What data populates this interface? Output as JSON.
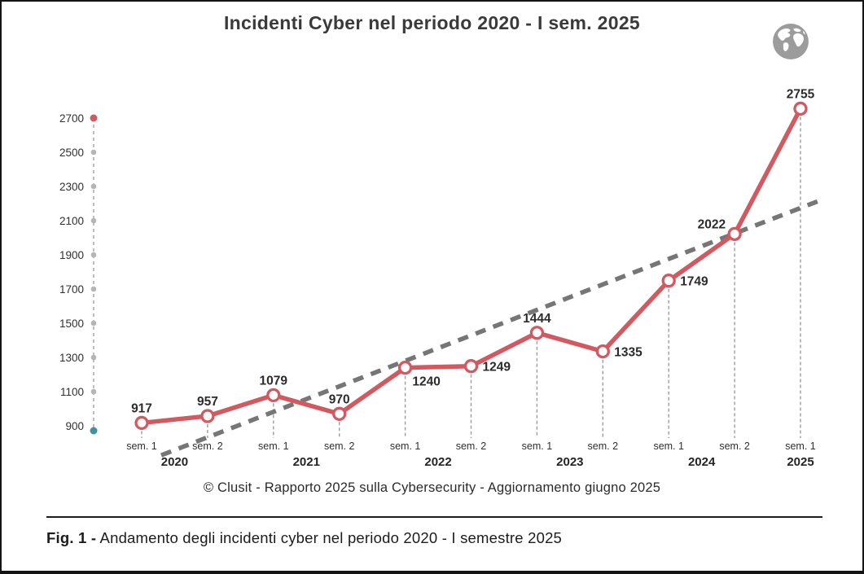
{
  "header": {
    "title": "Incidenti Cyber nel periodo 2020 - I sem. 2025",
    "globe_icon": "globe-icon"
  },
  "chart_data": {
    "type": "line",
    "title": "Incidenti Cyber nel periodo 2020 - I sem. 2025",
    "series": [
      {
        "name": "incidenti-per-semestre",
        "values": [
          917,
          957,
          1079,
          970,
          1240,
          1249,
          1444,
          1335,
          1749,
          2022,
          2755
        ],
        "color": "#d2595f",
        "marker": "open-circle"
      }
    ],
    "categories_sem": [
      "sem. 1",
      "sem. 2",
      "sem. 1",
      "sem. 2",
      "sem. 1",
      "sem. 2",
      "sem. 1",
      "sem. 2",
      "sem. 1",
      "sem. 2",
      "sem. 1"
    ],
    "year_groups": [
      {
        "label": "2020",
        "span": [
          0,
          1
        ]
      },
      {
        "label": "2021",
        "span": [
          2,
          3
        ]
      },
      {
        "label": "2022",
        "span": [
          4,
          5
        ]
      },
      {
        "label": "2023",
        "span": [
          6,
          7
        ]
      },
      {
        "label": "2024",
        "span": [
          8,
          9
        ]
      },
      {
        "label": "2025",
        "span": [
          10,
          10
        ]
      }
    ],
    "y_ticks": [
      900,
      1100,
      1300,
      1500,
      1700,
      1900,
      2100,
      2300,
      2500,
      2700
    ],
    "ylim": [
      900,
      2700
    ],
    "grid": false,
    "legend": false,
    "trendline": {
      "type": "linear",
      "style": "dashed",
      "color": "#767676"
    },
    "axis_style": {
      "line_color": "#b0b0b0",
      "tick_dot_color": "#b5b5b5",
      "top_dot_color": "#cf5a60",
      "bottom_dot_color": "#3e93a0",
      "dropline_color": "#9c9c9c",
      "label_color": "#303030"
    },
    "value_label_positions": [
      "above",
      "above",
      "above",
      "above",
      "below-right",
      "right",
      "above",
      "right",
      "right",
      "left-above",
      "above"
    ]
  },
  "footer": {
    "credit": "© Clusit - Rapporto 2025 sulla Cybersecurity - Aggiornamento giugno 2025"
  },
  "caption": {
    "prefix": "Fig. 1 -",
    "text": " Andamento degli incidenti cyber nel periodo 2020 - I semestre 2025"
  }
}
